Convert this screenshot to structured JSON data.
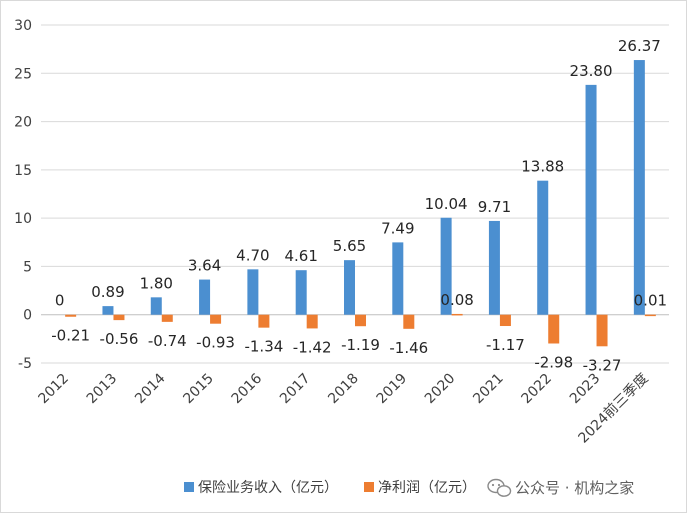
{
  "chart_data": {
    "type": "bar",
    "categories": [
      "2012",
      "2013",
      "2014",
      "2015",
      "2016",
      "2017",
      "2018",
      "2019",
      "2020",
      "2021",
      "2022",
      "2023",
      "2024前三季度"
    ],
    "series": [
      {
        "name": "保险业务收入（亿元）",
        "color": "#4b8fd0",
        "values": [
          0,
          0.89,
          1.8,
          3.64,
          4.7,
          4.61,
          5.65,
          7.49,
          10.04,
          9.71,
          13.88,
          23.8,
          26.37
        ],
        "labels": [
          "0",
          "0.89",
          "1.80",
          "3.64",
          "4.70",
          "4.61",
          "5.65",
          "7.49",
          "10.04",
          "9.71",
          "13.88",
          "23.80",
          "26.37"
        ]
      },
      {
        "name": "净利润（亿元）",
        "color": "#ed7d31",
        "values": [
          -0.21,
          -0.56,
          -0.74,
          -0.93,
          -1.34,
          -1.42,
          -1.19,
          -1.46,
          0.08,
          -1.17,
          -2.98,
          -3.27,
          0.01
        ],
        "labels": [
          "-0.21",
          "-0.56",
          "-0.74",
          "-0.93",
          "-1.34",
          "-1.42",
          "-1.19",
          "-1.46",
          "0.08",
          "-1.17",
          "-2.98",
          "-3.27",
          "0.01"
        ]
      }
    ],
    "y_ticks": [
      "30",
      "25",
      "20",
      "15",
      "10",
      "5",
      "0",
      "-5"
    ],
    "ylim": [
      -5,
      30
    ],
    "legend_position": "bottom"
  },
  "watermark": {
    "text": "公众号 · 机构之家",
    "icon": "wechat-icon"
  }
}
